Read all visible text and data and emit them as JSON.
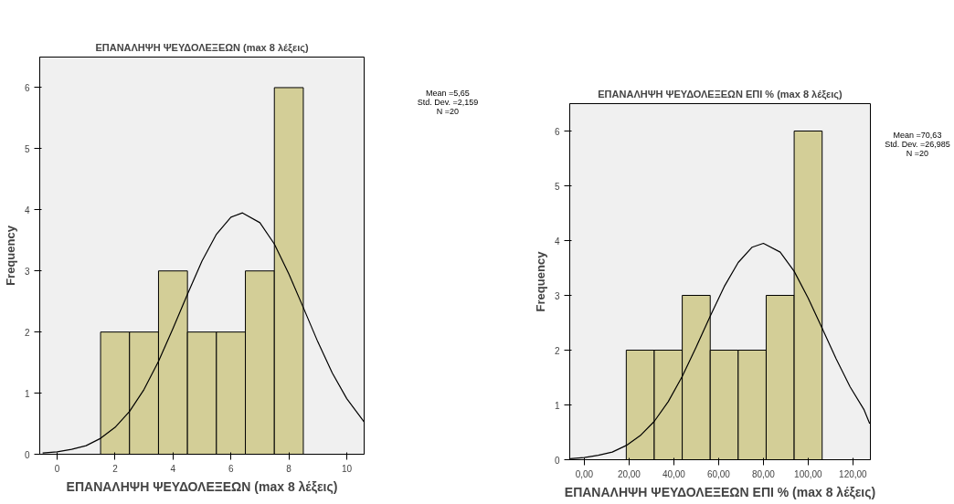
{
  "chart_data": [
    {
      "type": "histogram",
      "title": "ΕΠΑΝΑΛΗΨΗ ΨΕΥΔΟΛΕΞΕΩΝ (max 8 λέξεις)",
      "xlabel": "ΕΠΑΝΑΛΗΨΗ ΨΕΥΔΟΛΕΞΕΩΝ (max 8 λέξεις)",
      "ylabel": "Frequency",
      "annotations": [
        "Mean =5,65\nStd. Dev. =2,159\nN =20"
      ],
      "bins": [
        1.5,
        2.5,
        3.5,
        4.5,
        5.5,
        6.5,
        7.5,
        8.5
      ],
      "values": [
        2,
        2,
        3,
        2,
        2,
        3,
        6
      ],
      "color": "#d3ce97",
      "xlim": [
        -0.6,
        10.6
      ],
      "ylim": [
        0,
        6.5
      ],
      "xticks": [
        0,
        2,
        4,
        6,
        8,
        10
      ],
      "yticks": [
        0,
        1,
        2,
        3,
        4,
        5,
        6
      ],
      "grid": false,
      "series": [
        {
          "type": "line",
          "color": "#000000",
          "x": [
            -0.5,
            0,
            0.5,
            1,
            1.5,
            2,
            2.5,
            3,
            3.5,
            4,
            4.5,
            5,
            5.5,
            6,
            6.4,
            7,
            7.5,
            8,
            8.5,
            9,
            9.5,
            10,
            10.6
          ],
          "values": [
            0.02,
            0.04,
            0.08,
            0.14,
            0.26,
            0.44,
            0.7,
            1.06,
            1.52,
            2.06,
            2.62,
            3.16,
            3.6,
            3.88,
            3.95,
            3.79,
            3.44,
            2.95,
            2.4,
            1.84,
            1.33,
            0.91,
            0.53
          ]
        }
      ]
    },
    {
      "type": "histogram",
      "title": "ΕΠΑΝΑΛΗΨΗ ΨΕΥΔΟΛΕΞΕΩΝ ΕΠΙ % (max 8 λέξεις)",
      "xlabel": "ΕΠΑΝΑΛΗΨΗ ΨΕΥΔΟΛΕΞΕΩΝ ΕΠΙ % (max 8 λέξεις)",
      "ylabel": "Frequency",
      "annotations": [
        "Mean =70,63\nStd. Dev. =26,985\nN =20"
      ],
      "bins": [
        18.75,
        31.25,
        43.75,
        56.25,
        68.75,
        81.25,
        93.75,
        106.25
      ],
      "values": [
        2,
        2,
        3,
        2,
        2,
        3,
        6
      ],
      "color": "#d3ce97",
      "xlim": [
        -6.5,
        127.8
      ],
      "ylim": [
        0,
        6.5
      ],
      "xticks": [
        {
          "value": 0,
          "label": "0,00"
        },
        {
          "value": 20,
          "label": "20,00"
        },
        {
          "value": 40,
          "label": "40,00"
        },
        {
          "value": 60,
          "label": "60,00"
        },
        {
          "value": 80,
          "label": "80,00"
        },
        {
          "value": 100,
          "label": "100,00"
        },
        {
          "value": 120,
          "label": "120,00"
        }
      ],
      "yticks": [
        0,
        1,
        2,
        3,
        4,
        5,
        6
      ],
      "grid": false,
      "series": [
        {
          "type": "line",
          "color": "#000000",
          "x": [
            -6.25,
            0,
            6.25,
            12.5,
            18.75,
            25,
            31.25,
            37.5,
            43.75,
            50,
            56.25,
            62.5,
            68.75,
            75,
            80,
            87.5,
            93.75,
            100,
            106.25,
            112.5,
            118.75,
            125,
            127.5
          ],
          "values": [
            0.02,
            0.04,
            0.08,
            0.14,
            0.26,
            0.44,
            0.7,
            1.06,
            1.52,
            2.06,
            2.62,
            3.16,
            3.6,
            3.88,
            3.95,
            3.79,
            3.44,
            2.95,
            2.4,
            1.84,
            1.33,
            0.91,
            0.66
          ]
        }
      ]
    }
  ]
}
